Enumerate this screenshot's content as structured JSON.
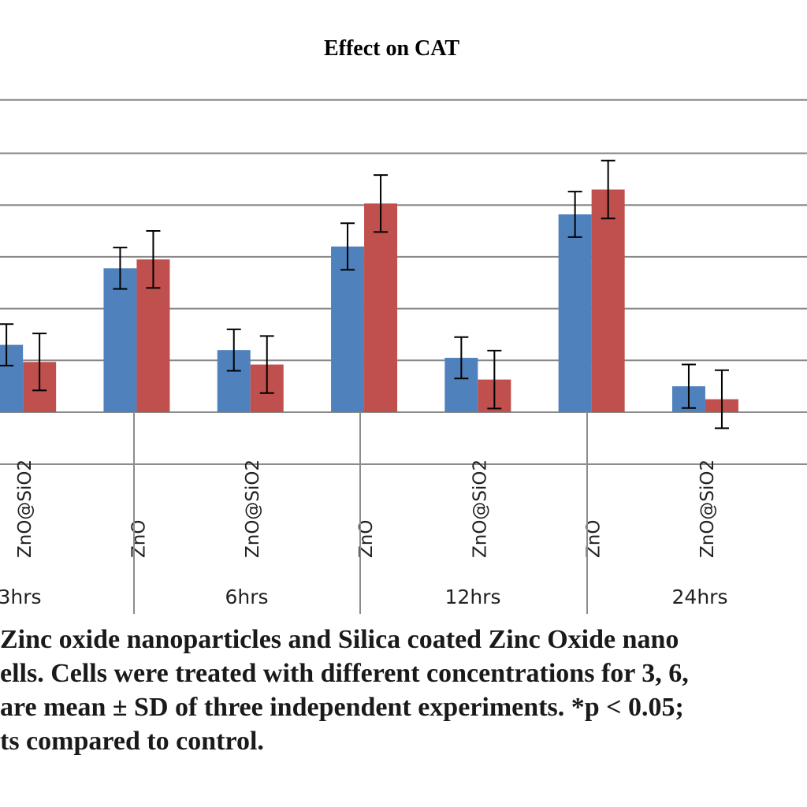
{
  "chart_data": {
    "type": "bar",
    "title": "Effect on CAT",
    "xlabel": "",
    "ylabel": "",
    "ylim": [
      0,
      6
    ],
    "grid": true,
    "groups": [
      {
        "label": "3hrs",
        "categories": [
          "ZnO@SiO2"
        ]
      },
      {
        "label": "6hrs",
        "categories": [
          "ZnO",
          "ZnO@SiO2"
        ]
      },
      {
        "label": "12hrs",
        "categories": [
          "ZnO",
          "ZnO@SiO2"
        ]
      },
      {
        "label": "24hrs",
        "categories": [
          "ZnO",
          "ZnO@SiO2"
        ]
      }
    ],
    "categories": [
      "ZnO@SiO2",
      "ZnO",
      "ZnO@SiO2",
      "ZnO",
      "ZnO@SiO2",
      "ZnO",
      "ZnO@SiO2"
    ],
    "series": [
      {
        "color": "#4f81bd",
        "values": [
          1.3,
          2.78,
          1.2,
          3.2,
          1.05,
          3.82,
          0.5
        ],
        "errors": [
          0.4,
          0.4,
          0.4,
          0.45,
          0.4,
          0.44,
          0.42
        ]
      },
      {
        "color": "#c0504d",
        "values": [
          0.97,
          2.95,
          0.92,
          4.03,
          0.63,
          4.3,
          0.25
        ],
        "errors": [
          0.55,
          0.55,
          0.55,
          0.55,
          0.56,
          0.56,
          0.56
        ]
      }
    ]
  },
  "caption": {
    "lines": [
      "Zinc oxide nanoparticles and Silica coated Zinc Oxide nano",
      "ells. Cells were treated with different concentrations for 3, 6,",
      "are mean ± SD of three independent experiments. *p < 0.05;",
      "ts compared to control."
    ]
  }
}
